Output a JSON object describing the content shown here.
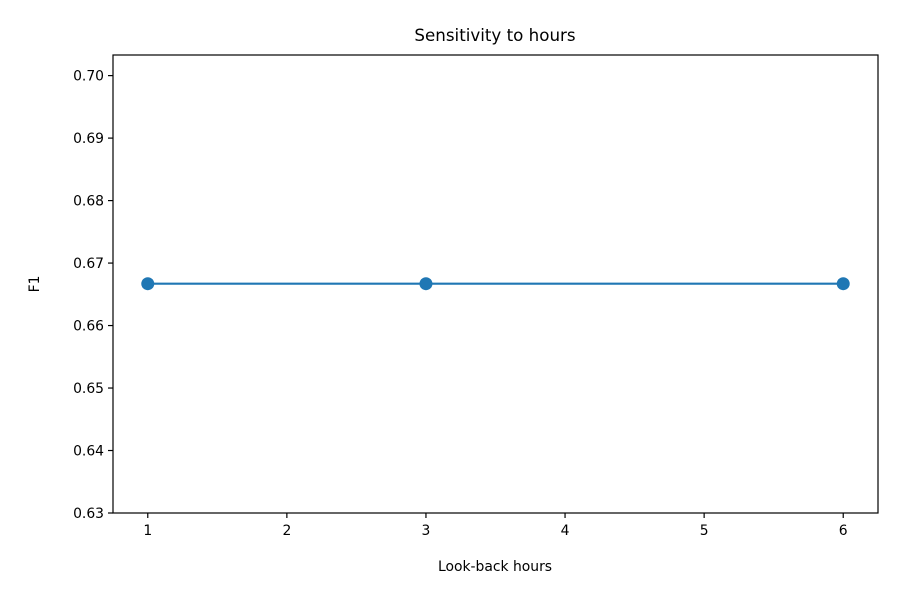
{
  "chart_data": {
    "type": "line",
    "title": "Sensitivity to hours",
    "xlabel": "Look-back hours",
    "ylabel": "F1",
    "x": [
      1,
      3,
      6
    ],
    "series": [
      {
        "values": [
          0.6667,
          0.6667,
          0.6667
        ],
        "color": "#1f77b4",
        "marker": "circle"
      }
    ],
    "xlim": [
      0.75,
      6.25
    ],
    "ylim": [
      0.63,
      0.7033
    ],
    "xticks": [
      1,
      2,
      3,
      4,
      5,
      6
    ],
    "xtick_labels": [
      "1",
      "2",
      "3",
      "4",
      "5",
      "6"
    ],
    "yticks": [
      0.63,
      0.64,
      0.65,
      0.66,
      0.67,
      0.68,
      0.69,
      0.7
    ],
    "ytick_labels": [
      "0.63",
      "0.64",
      "0.65",
      "0.66",
      "0.67",
      "0.68",
      "0.69",
      "0.70"
    ],
    "grid": false,
    "legend": "none"
  }
}
